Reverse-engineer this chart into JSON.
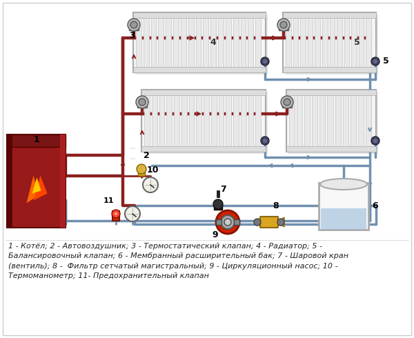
{
  "bg_color": "#ffffff",
  "hot_color": "#8B2020",
  "cold_color": "#7090B0",
  "rad_fill": "#f2f2f2",
  "rad_edge": "#aaaaaa",
  "rad_fin": "#e0e0e0",
  "boiler_dark": "#7a1515",
  "boiler_mid": "#991a1a",
  "boiler_light": "#cc2222",
  "caption_text": "1 - Котёл; 2 - Автовоздушник; 3 - Термостатический клапан; 4 - Радиатор; 5 -\nБалансировочный клапан; 6 - Мембранный расширительный бак; 7 - Шаровой кран\n(вентиль); 8 -  Фильтр сетчатый магистральный; 9 - Циркуляционный насос; 10 -\nТермоманометр; 11- Предохранительный клапан",
  "pipe_lw": 3.2,
  "pipe_lw2": 2.5,
  "label_fs": 9,
  "caption_fs": 8.0
}
